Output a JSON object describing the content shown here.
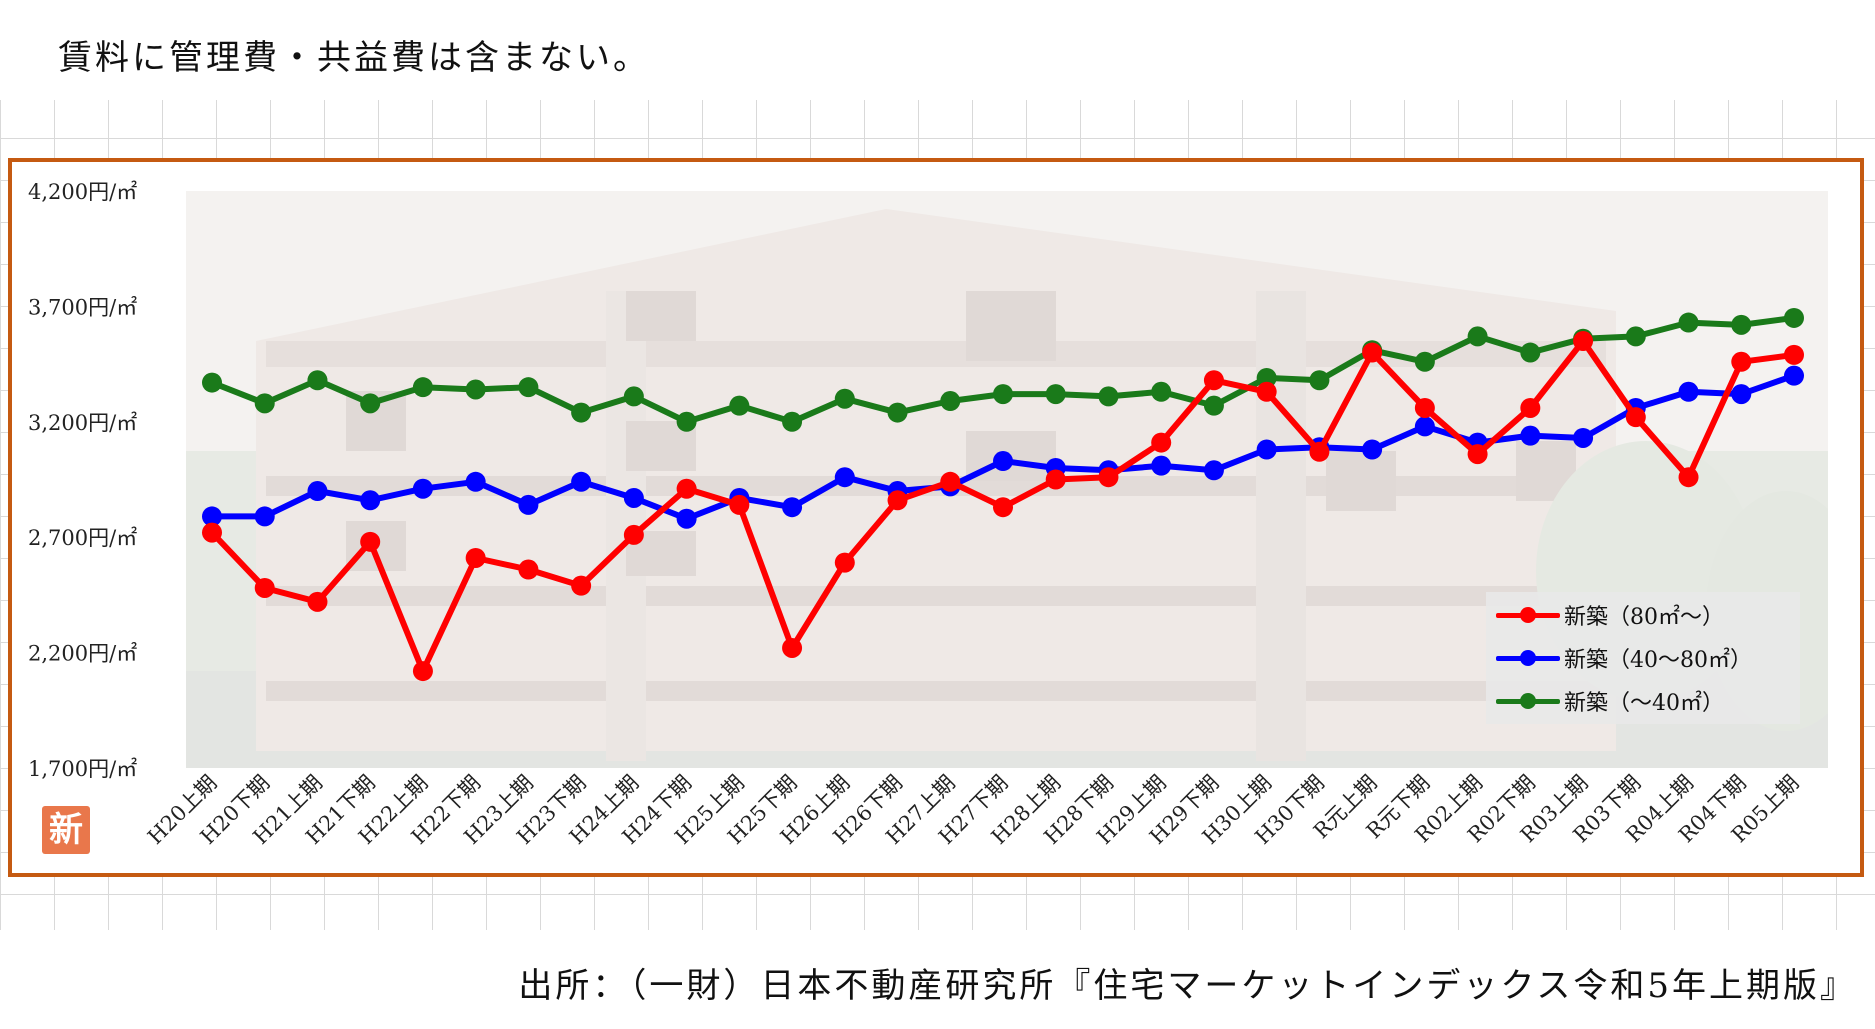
{
  "note": "賃料に管理費・共益費は含まない。",
  "source": "出所：（一財）日本不動産研究所『住宅マーケットインデックス令和5年上期版』",
  "badge": "新",
  "colors": {
    "frame": "#c55a11",
    "red": "#ff0000",
    "blue": "#0000ff",
    "green": "#1a7a1a"
  },
  "chart_data": {
    "type": "line",
    "ylim": [
      1700,
      4200
    ],
    "y_ticks": [
      4200,
      3700,
      3200,
      2700,
      2200,
      1700
    ],
    "y_tick_labels": [
      "4,200円/㎡",
      "3,700円/㎡",
      "3,200円/㎡",
      "2,700円/㎡",
      "2,200円/㎡",
      "1,700円/㎡"
    ],
    "categories": [
      "H20上期",
      "H20下期",
      "H21上期",
      "H21下期",
      "H22上期",
      "H22下期",
      "H23上期",
      "H23下期",
      "H24上期",
      "H24下期",
      "H25上期",
      "H25下期",
      "H26上期",
      "H26下期",
      "H27上期",
      "H27下期",
      "H28上期",
      "H28下期",
      "H29上期",
      "H29下期",
      "H30上期",
      "H30下期",
      "R元上期",
      "R元下期",
      "R02上期",
      "R02下期",
      "R03上期",
      "R03下期",
      "R04上期",
      "R04下期",
      "R05上期"
    ],
    "series": [
      {
        "name": "新築（80㎡～）",
        "color": "#ff0000",
        "values": [
          2720,
          2480,
          2420,
          2680,
          2120,
          2610,
          2560,
          2490,
          2710,
          2910,
          2840,
          2220,
          2590,
          2860,
          2940,
          2830,
          2950,
          2960,
          3110,
          3380,
          3330,
          3070,
          3500,
          3260,
          3060,
          3260,
          3550,
          3220,
          2960,
          3460,
          3490
        ]
      },
      {
        "name": "新築（40～80㎡）",
        "color": "#0000ff",
        "values": [
          2790,
          2790,
          2900,
          2860,
          2910,
          2940,
          2840,
          2940,
          2870,
          2780,
          2870,
          2830,
          2960,
          2900,
          2920,
          3030,
          3000,
          2990,
          3010,
          2990,
          3080,
          3090,
          3080,
          3180,
          3110,
          3140,
          3130,
          3260,
          3330,
          3320,
          3400
        ]
      },
      {
        "name": "新築（～40㎡）",
        "color": "#1a7a1a",
        "values": [
          3370,
          3280,
          3380,
          3280,
          3350,
          3340,
          3350,
          3240,
          3310,
          3200,
          3270,
          3200,
          3300,
          3240,
          3290,
          3320,
          3320,
          3310,
          3330,
          3270,
          3390,
          3380,
          3510,
          3460,
          3570,
          3500,
          3560,
          3570,
          3630,
          3620,
          3650
        ]
      }
    ]
  }
}
